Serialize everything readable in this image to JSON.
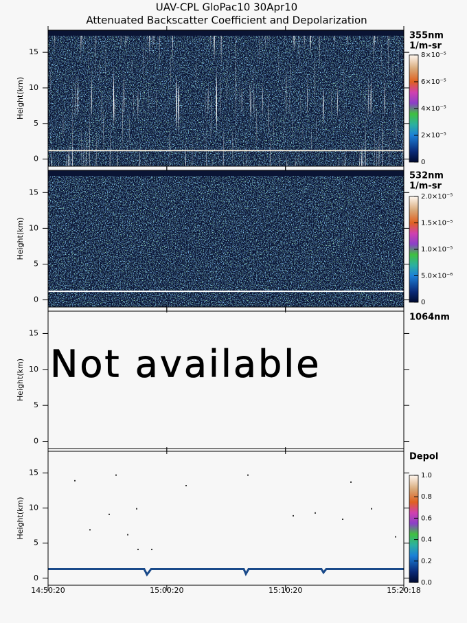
{
  "header": {
    "title": "UAV-CPL GloPac10 30Apr10",
    "subtitle": "Attenuated Backscatter Coefficient and Depolarization"
  },
  "chart_data": [
    {
      "type": "heatmap",
      "channel": "355nm",
      "units": "1/m-sr",
      "ylabel": "Height(km)",
      "ylim": [
        -1,
        18.1
      ],
      "yticks": [
        0,
        5,
        10,
        15
      ],
      "xlim": [
        0,
        1798
      ],
      "xticks": [
        0,
        600,
        1200,
        1798
      ],
      "colorbar": {
        "lim": [
          0,
          8e-05
        ],
        "ticks": [
          {
            "value": 0,
            "label": "0"
          },
          {
            "value": 2e-05,
            "label": "2×10⁻⁵"
          },
          {
            "value": 4e-05,
            "label": "4×10⁻⁵"
          },
          {
            "value": 6e-05,
            "label": "6×10⁻⁵"
          },
          {
            "value": 8e-05,
            "label": "8×10⁻⁵"
          }
        ]
      }
    },
    {
      "type": "heatmap",
      "channel": "532nm",
      "units": "1/m-sr",
      "ylabel": "Height(km)",
      "ylim": [
        -1,
        18.1
      ],
      "yticks": [
        0,
        5,
        10,
        15
      ],
      "xlim": [
        0,
        1798
      ],
      "xticks": [
        0,
        600,
        1200,
        1798
      ],
      "colorbar": {
        "lim": [
          0,
          2e-05
        ],
        "ticks": [
          {
            "value": 0,
            "label": "0"
          },
          {
            "value": 5e-06,
            "label": "5.0×10⁻⁶"
          },
          {
            "value": 1e-05,
            "label": "1.0×10⁻⁵"
          },
          {
            "value": 1.5e-05,
            "label": "1.5×10⁻⁵"
          },
          {
            "value": 2e-05,
            "label": "2.0×10⁻⁵"
          }
        ]
      }
    },
    {
      "type": "empty",
      "channel": "1064nm",
      "annotation": "Not available",
      "ylabel": "Height(km)",
      "ylim": [
        -1,
        18.1
      ],
      "yticks": [
        0,
        5,
        10,
        15
      ],
      "xlim": [
        0,
        1798
      ],
      "xticks": [
        0,
        600,
        1200,
        1798
      ]
    },
    {
      "type": "depol",
      "channel": "Depol",
      "ylabel": "Height(km)",
      "ylim": [
        -1,
        18.1
      ],
      "yticks": [
        0,
        5,
        10,
        15
      ],
      "xlim": [
        0,
        1798
      ],
      "xticks": [
        {
          "value": 0,
          "label": "14:50:20"
        },
        {
          "value": 600,
          "label": "15:00:20"
        },
        {
          "value": 1200,
          "label": "15:10:20"
        },
        {
          "value": 1798,
          "label": "15:20:18"
        }
      ],
      "colorbar": {
        "lim": [
          0,
          1
        ],
        "ticks": [
          {
            "value": 0,
            "label": "0.0"
          },
          0.2,
          0.4,
          0.6,
          0.8,
          {
            "value": 1,
            "label": "1.0"
          }
        ]
      }
    }
  ]
}
